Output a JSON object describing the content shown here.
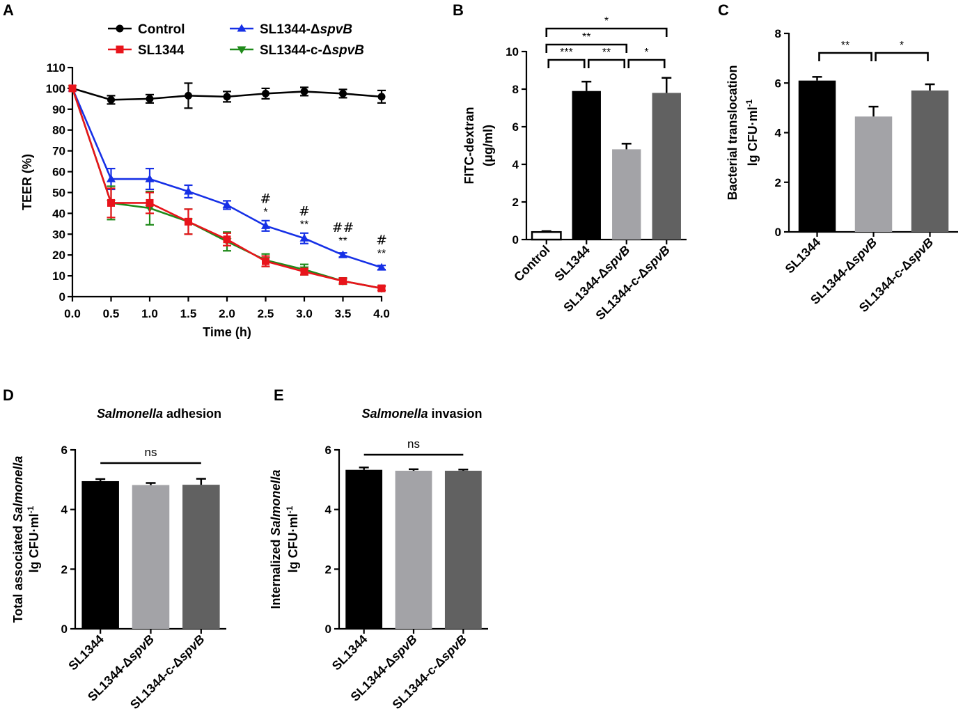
{
  "figure": {
    "panel_letters": [
      "A",
      "B",
      "C",
      "D",
      "E"
    ],
    "colors": {
      "control": "#000000",
      "sl1344_line": "#e8141b",
      "spvB_line": "#1630e6",
      "comp_line": "#1f8a1a",
      "bar_sl1344": "#000000",
      "bar_spvB": "#a3a3a7",
      "bar_comp": "#616161"
    }
  },
  "chart_data": [
    {
      "panel": "A",
      "type": "line",
      "xlabel": "Time (h)",
      "ylabel": "TEER (%)",
      "xlim": [
        0,
        4
      ],
      "ylim": [
        0,
        110
      ],
      "x_ticks": [
        "0.0",
        "0.5",
        "1.0",
        "1.5",
        "2.0",
        "2.5",
        "3.0",
        "3.5",
        "4.0"
      ],
      "y_ticks": [
        "0",
        "10",
        "20",
        "30",
        "40",
        "50",
        "60",
        "70",
        "80",
        "90",
        "100",
        "110"
      ],
      "x": [
        0,
        0.5,
        1.0,
        1.5,
        2.0,
        2.5,
        3.0,
        3.5,
        4.0
      ],
      "series": [
        {
          "key": "control",
          "name": "Control",
          "marker": "circle",
          "values": [
            100,
            94.5,
            95,
            96.5,
            96,
            97.5,
            98.5,
            97.5,
            96
          ],
          "errors": [
            0,
            2,
            2,
            6,
            2.5,
            2.5,
            2,
            2,
            3
          ]
        },
        {
          "key": "spvB",
          "name": "SL1344-ΔspvB",
          "name_prefix": "SL1344-Δ",
          "name_italic": "spvB",
          "marker": "triangle-up",
          "values": [
            100,
            56.5,
            56.5,
            50.5,
            44,
            34,
            28,
            20,
            14
          ],
          "errors": [
            0,
            5,
            5,
            3,
            2,
            2.5,
            2.5,
            1,
            1
          ]
        },
        {
          "key": "comp",
          "name": "SL1344-c-ΔspvB",
          "name_prefix": "SL1344-c-Δ",
          "name_italic": "spvB",
          "marker": "triangle-down",
          "values": [
            100,
            45,
            42.5,
            36,
            26.5,
            17.5,
            13,
            7.5,
            4
          ],
          "errors": [
            0,
            8,
            8,
            6,
            4.5,
            3,
            2.5,
            1.5,
            1
          ]
        },
        {
          "key": "sl1344",
          "name": "SL1344",
          "marker": "square",
          "values": [
            100,
            45,
            45,
            36,
            27.5,
            17,
            12,
            7.5,
            4
          ],
          "errors": [
            0,
            7,
            5,
            6,
            3,
            2.5,
            1.5,
            1,
            1
          ]
        }
      ],
      "legend_order": [
        "control",
        "sl1344",
        "spvB",
        "comp"
      ],
      "annotations": [
        {
          "x": 2.5,
          "hash": "#",
          "stars": "*",
          "y": 34
        },
        {
          "x": 3.0,
          "hash": "#",
          "stars": "**",
          "y": 28
        },
        {
          "x": 3.5,
          "hash": "##",
          "stars": "**",
          "y": 20
        },
        {
          "x": 4.0,
          "hash": "#",
          "stars": "**",
          "y": 14
        }
      ]
    },
    {
      "panel": "B",
      "type": "bar",
      "ylabel_lines": [
        "FITC-dextran",
        "(μg/ml)"
      ],
      "ylim": [
        0,
        10
      ],
      "y_ticks": [
        "0",
        "2",
        "4",
        "6",
        "8",
        "10"
      ],
      "categories": [
        {
          "prefix": "Control",
          "italic": ""
        },
        {
          "prefix": "SL1344",
          "italic": ""
        },
        {
          "prefix": "SL1344-Δ",
          "italic": "spvB"
        },
        {
          "prefix": "SL1344-c-Δ",
          "italic": "spvB"
        }
      ],
      "values": [
        0.4,
        7.9,
        4.8,
        7.8
      ],
      "errors": [
        0.05,
        0.5,
        0.3,
        0.8
      ],
      "bar_colors": [
        "#ffffff",
        "#000000",
        "#a3a3a7",
        "#616161"
      ],
      "comparisons": [
        {
          "from": 0,
          "to": 1,
          "label": "***",
          "level": 0
        },
        {
          "from": 1,
          "to": 2,
          "label": "**",
          "level": 0
        },
        {
          "from": 2,
          "to": 3,
          "label": "*",
          "level": 0
        },
        {
          "from": 0,
          "to": 2,
          "label": "**",
          "level": 1
        },
        {
          "from": 0,
          "to": 3,
          "label": "*",
          "level": 2
        }
      ]
    },
    {
      "panel": "C",
      "type": "bar",
      "ylabel_lines": [
        "Bacterial translocation",
        "lg CFU·ml"
      ],
      "ylabel_sup": "-1",
      "ylim": [
        0,
        8
      ],
      "y_ticks": [
        "0",
        "2",
        "4",
        "6",
        "8"
      ],
      "categories": [
        {
          "prefix": "SL1344",
          "italic": ""
        },
        {
          "prefix": "SL1344-Δ",
          "italic": "spvB"
        },
        {
          "prefix": "SL1344-c-Δ",
          "italic": "spvB"
        }
      ],
      "values": [
        6.1,
        4.65,
        5.7
      ],
      "errors": [
        0.15,
        0.4,
        0.25
      ],
      "bar_colors": [
        "#000000",
        "#a3a3a7",
        "#616161"
      ],
      "comparisons": [
        {
          "from": 0,
          "to": 1,
          "label": "**",
          "level": 0
        },
        {
          "from": 1,
          "to": 2,
          "label": "*",
          "level": 0
        }
      ]
    },
    {
      "panel": "D",
      "type": "bar",
      "title_italic": "Salmonella",
      "title_rest": " adhesion",
      "ylabel_line1_plain": "Total associated ",
      "ylabel_line1_italic": "Salmonella",
      "ylabel_line2": "lg CFU·ml",
      "ylabel_sup": "-1",
      "ylim": [
        0,
        6
      ],
      "y_ticks": [
        "0",
        "2",
        "4",
        "6"
      ],
      "categories": [
        {
          "prefix": "SL1344",
          "italic": ""
        },
        {
          "prefix": "SL1344-Δ",
          "italic": "spvB"
        },
        {
          "prefix": "SL1344-c-Δ",
          "italic": "spvB"
        }
      ],
      "values": [
        4.95,
        4.82,
        4.83
      ],
      "errors": [
        0.07,
        0.07,
        0.2
      ],
      "bar_colors": [
        "#000000",
        "#a3a3a7",
        "#616161"
      ],
      "ns_label": "ns"
    },
    {
      "panel": "E",
      "type": "bar",
      "title_italic": "Salmonella",
      "title_rest": " invasion",
      "ylabel_line1_plain": "Internalized ",
      "ylabel_line1_italic": "Salmonella",
      "ylabel_line2": "lg CFU·ml",
      "ylabel_sup": "-1",
      "ylim": [
        0,
        6
      ],
      "y_ticks": [
        "0",
        "2",
        "4",
        "6"
      ],
      "categories": [
        {
          "prefix": "SL1344",
          "italic": ""
        },
        {
          "prefix": "SL1344-Δ",
          "italic": "spvB"
        },
        {
          "prefix": "SL1344-c-Δ",
          "italic": "spvB"
        }
      ],
      "values": [
        5.33,
        5.3,
        5.3
      ],
      "errors": [
        0.08,
        0.05,
        0.04
      ],
      "bar_colors": [
        "#000000",
        "#a3a3a7",
        "#616161"
      ],
      "ns_label": "ns"
    }
  ]
}
